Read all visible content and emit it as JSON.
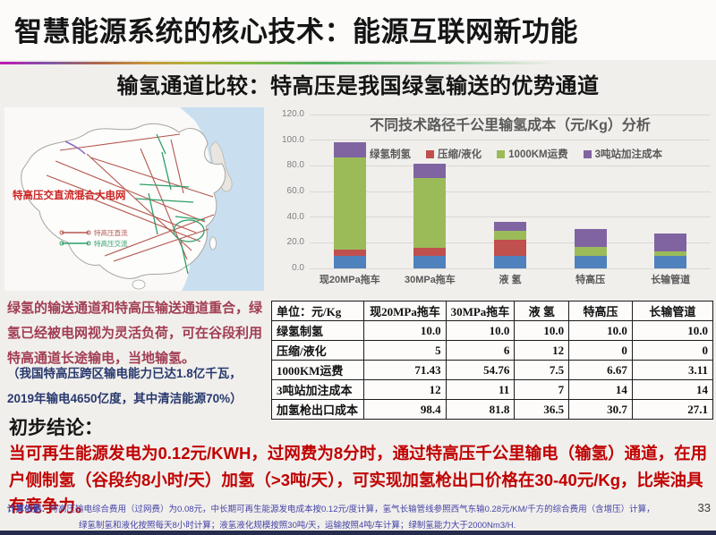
{
  "slide": {
    "title": "智慧能源系统的核心技术：能源互联网新功能",
    "subtitle": "输氢通道比较：特高压是我国绿氢输送的优势通道",
    "page_number": "33"
  },
  "map": {
    "label": "特高压交直流混合大电网",
    "legend": [
      {
        "name": "特高压直流",
        "color": "#b4574e"
      },
      {
        "name": "特高压交流",
        "color": "#2f9e68"
      }
    ]
  },
  "left_notes": {
    "paragraph": "绿氢的输送通道和特高压输送通道重合，绿氢已经被电网视为灵活负荷，可在谷段利用特高通道长途输电，当地输氢。",
    "note": "（我国特高压跨区输电能力已达1.8亿千瓦，2019年输电4650亿度，其中清洁能源70%）"
  },
  "chart_data": {
    "type": "bar",
    "stacked": true,
    "title": "不同技术路径千公里输氢成本（元/Kg）分析",
    "categories": [
      "现20MPa拖车",
      "30MPa拖车",
      "液 氢",
      "特高压",
      "长输管道"
    ],
    "series": [
      {
        "name": "绿氢制氢",
        "color": "#4f81bd",
        "values": [
          10.0,
          10.0,
          10.0,
          10.0,
          10.0
        ]
      },
      {
        "name": "压缩/液化",
        "color": "#c0504d",
        "values": [
          5,
          6,
          12,
          0,
          0
        ]
      },
      {
        "name": "1000KM运费",
        "color": "#9bbb59",
        "values": [
          71.43,
          54.76,
          7.5,
          6.67,
          3.11
        ]
      },
      {
        "name": "3吨站加注成本",
        "color": "#8064a2",
        "values": [
          12,
          11,
          7,
          14,
          14
        ]
      }
    ],
    "totals": [
      98.4,
      81.8,
      36.5,
      30.7,
      27.1
    ],
    "ylim": [
      0,
      120
    ],
    "ytick_step": 20,
    "grid": true,
    "legend_position": "top-inside"
  },
  "table": {
    "unit_header": "单位：元/Kg",
    "headers": [
      "单位：元/Kg",
      "现20MPa拖车",
      "30MPa拖车",
      "液 氢",
      "特高压",
      "长输管道"
    ],
    "rows": [
      {
        "label": "绿氢制氢",
        "values": [
          "10.0",
          "10.0",
          "10.0",
          "10.0",
          "10.0"
        ]
      },
      {
        "label": "压缩/液化",
        "values": [
          "5",
          "6",
          "12",
          "0",
          "0"
        ]
      },
      {
        "label": "1000KM运费",
        "values": [
          "71.43",
          "54.76",
          "7.5",
          "6.67",
          "3.11"
        ]
      },
      {
        "label": "3吨站加注成本",
        "values": [
          "12",
          "11",
          "7",
          "14",
          "14"
        ]
      },
      {
        "label": "加氢枪出口成本",
        "values": [
          "98.4",
          "81.8",
          "36.5",
          "30.7",
          "27.1"
        ]
      }
    ]
  },
  "conclusion": {
    "heading": "初步结论：",
    "body": "当可再生能源发电为0.12元/KWH，过网费为8分时，通过特高压千公里输电（输氢）通道，在用户侧制氢（谷段约8小时/天）加氢（>3吨/天），可实现加氢枪出口价格在30-40元/Kg，比柴油具有竞争力。"
  },
  "footer": {
    "label": "计算依据：",
    "line1": "特高压输电综合费用（过网费）为0.08元，中长期可再生能源发电成本按0.12元/度计算，氢气长输管线参照西气东输0.28元/KM/千方的综合费用（含增压）计算，",
    "line2": "绿氢制氢和液化按照每天8小时计算；液氢液化规模按照30吨/天，运输按照4吨/车计算；绿制氢能力大于2000Nm3/H."
  },
  "colors": {
    "slide_bg": "#f1efec",
    "series_blue": "#4f81bd",
    "series_red": "#c0504d",
    "series_green": "#9bbb59",
    "series_purple": "#8064a2",
    "left_paragraph": "#a23d52",
    "left_note": "#28396e",
    "conclusion_red": "#c00000",
    "footer_navy": "#4343a6",
    "sea_blue": "#c9dff0"
  }
}
